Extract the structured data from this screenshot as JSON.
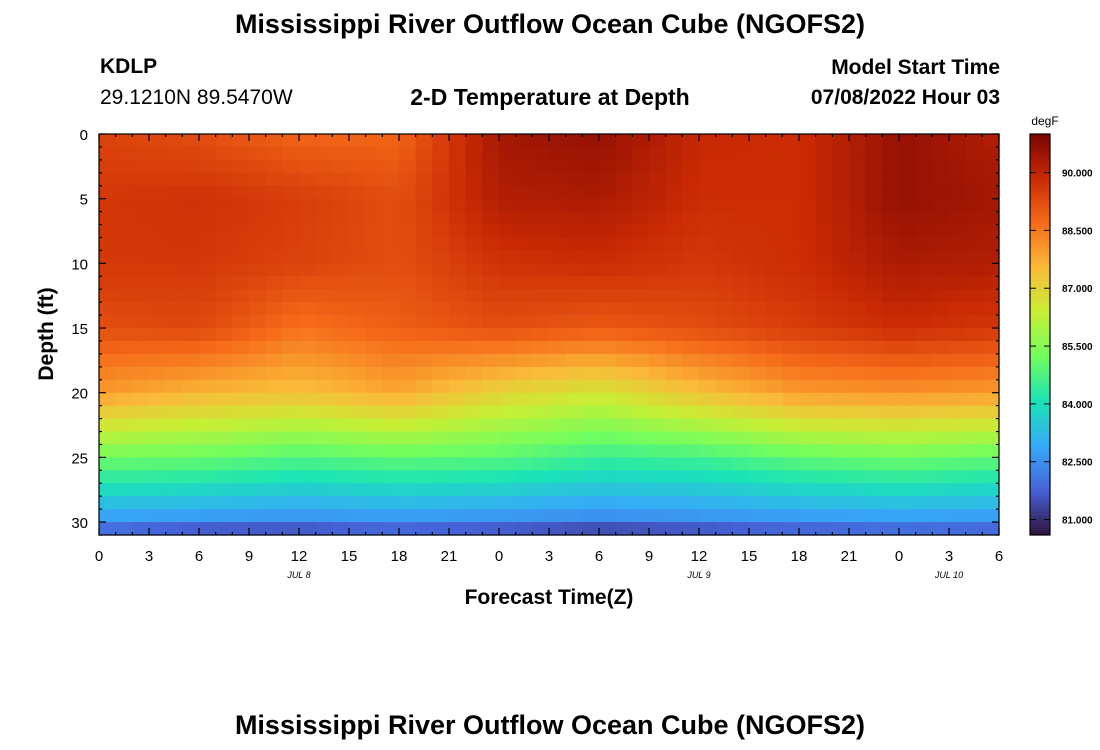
{
  "header": {
    "title": "Mississippi River Outflow Ocean Cube (NGOFS2)",
    "station": "KDLP",
    "coords": "29.1210N  89.5470W",
    "subtitle": "2-D Temperature at Depth",
    "model_start_label": "Model Start Time",
    "model_start_value": "07/08/2022 Hour 03"
  },
  "footer": {
    "title": "Mississippi River Outflow Ocean Cube (NGOFS2)"
  },
  "colors": {
    "background": "#ffffff",
    "colormap": [
      "#30123b",
      "#4662d8",
      "#36aaf9",
      "#1ae4b6",
      "#72fe5e",
      "#c8ef34",
      "#faba39",
      "#f66b19",
      "#ca2a04",
      "#7a0403"
    ]
  },
  "chart_data": {
    "type": "heatmap",
    "title": "Mississippi River Outflow Ocean Cube (NGOFS2)",
    "subtitle": "2-D Temperature at Depth",
    "xlabel": "Forecast Time(Z)",
    "ylabel": "Depth (ft)",
    "x_tick_labels": [
      "0",
      "3",
      "6",
      "9",
      "12",
      "15",
      "18",
      "21",
      "0",
      "3",
      "6",
      "9",
      "12",
      "15",
      "18",
      "21",
      "0",
      "3",
      "6"
    ],
    "date_labels": [
      "JUL 8",
      "JUL 9",
      "JUL 10"
    ],
    "x_hours": [
      0,
      3,
      6,
      9,
      12,
      15,
      18,
      21,
      24,
      27,
      30,
      33,
      36,
      39,
      42,
      45,
      48,
      51,
      54
    ],
    "xlim": [
      0,
      54
    ],
    "ylim": [
      31,
      0
    ],
    "y_ticks": [
      0,
      5,
      10,
      15,
      20,
      25,
      30
    ],
    "colorbar": {
      "unit": "degF",
      "ticks": [
        "90.000",
        "88.500",
        "87.000",
        "85.500",
        "84.000",
        "82.500",
        "81.000"
      ],
      "tick_values": [
        90.0,
        88.5,
        87.0,
        85.5,
        84.0,
        82.5,
        81.0
      ],
      "range": [
        80.6,
        91.0
      ]
    },
    "depth_ft": [
      0,
      5,
      10,
      15,
      20,
      25,
      30,
      31
    ],
    "time_hours": [
      0,
      6,
      12,
      18,
      24,
      30,
      36,
      42,
      48,
      54
    ],
    "temperature_degF": [
      [
        89.4,
        89.2,
        88.8,
        88.8,
        90.4,
        90.6,
        89.9,
        89.8,
        90.6,
        90.2
      ],
      [
        89.6,
        89.7,
        89.5,
        89.2,
        90.2,
        90.3,
        89.8,
        89.8,
        90.6,
        90.4
      ],
      [
        89.6,
        89.6,
        89.4,
        89.2,
        89.7,
        89.8,
        89.6,
        89.8,
        90.3,
        90.2
      ],
      [
        89.2,
        89.3,
        88.6,
        88.9,
        89.2,
        89.0,
        89.2,
        89.5,
        89.8,
        89.6
      ],
      [
        88.0,
        87.6,
        87.4,
        87.8,
        87.0,
        86.6,
        87.4,
        88.0,
        88.1,
        88.0
      ],
      [
        85.2,
        85.1,
        84.8,
        85.0,
        84.9,
        84.5,
        84.6,
        85.0,
        85.2,
        85.0
      ],
      [
        82.6,
        82.5,
        82.4,
        82.5,
        82.4,
        82.3,
        82.4,
        82.5,
        82.6,
        82.5
      ],
      [
        81.4,
        80.9,
        80.9,
        81.2,
        81.0,
        80.7,
        80.9,
        81.2,
        81.3,
        81.3
      ]
    ]
  }
}
